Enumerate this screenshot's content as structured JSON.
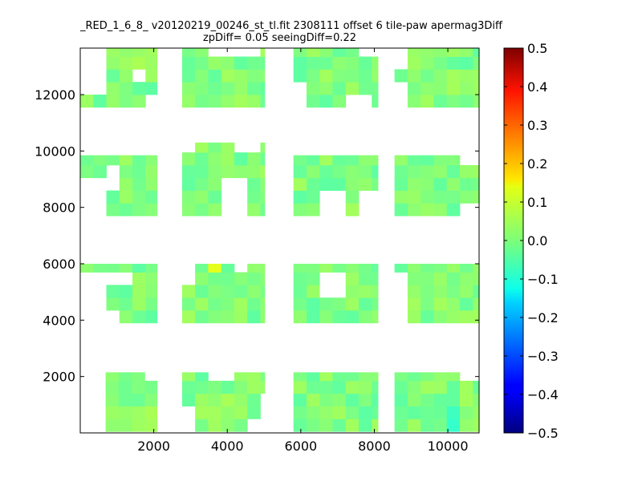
{
  "chart_data": {
    "type": "heatmap",
    "title_line1": "_RED_1_6_8_ v20120219_00246_st_tl.fit 2308111 offset 6 tile-paw apermag3Diff",
    "title_line2": "zpDiff= 0.05 seeingDiff=0.22",
    "xlim": [
      0,
      10850
    ],
    "ylim": [
      0,
      13650
    ],
    "xticks": [
      2000,
      4000,
      6000,
      8000,
      10000
    ],
    "yticks": [
      2000,
      4000,
      6000,
      8000,
      10000,
      12000
    ],
    "colorbar": {
      "colormap": "jet",
      "range": [
        -0.5,
        0.5
      ],
      "ticks": [
        -0.5,
        -0.4,
        -0.3,
        -0.2,
        -0.1,
        0.0,
        0.1,
        0.2,
        0.3,
        0.4,
        0.5
      ],
      "tick_labels": [
        "−0.5",
        "−0.4",
        "−0.3",
        "−0.2",
        "−0.1",
        "0.0",
        "0.1",
        "0.2",
        "0.3",
        "0.4",
        "0.5"
      ]
    },
    "grid": false,
    "cell_size": [
      355,
      450
    ],
    "base_value": 0.0,
    "blocks": [
      {
        "x": [
          690,
          2090
        ],
        "y": [
          50,
          2150
        ]
      },
      {
        "x": [
          2770,
          5020
        ],
        "y": [
          50,
          2150
        ]
      },
      {
        "x": [
          5800,
          8100
        ],
        "y": [
          50,
          2150
        ]
      },
      {
        "x": [
          8550,
          10850
        ],
        "y": [
          50,
          2150
        ]
      },
      {
        "x": [
          0,
          2090
        ],
        "y": [
          3900,
          6000
        ]
      },
      {
        "x": [
          2770,
          5020
        ],
        "y": [
          3900,
          6000
        ]
      },
      {
        "x": [
          5800,
          8100
        ],
        "y": [
          3900,
          6000
        ]
      },
      {
        "x": [
          8550,
          10850
        ],
        "y": [
          3900,
          6000
        ]
      },
      {
        "x": [
          0,
          2090
        ],
        "y": [
          7700,
          9850
        ]
      },
      {
        "x": [
          2770,
          5020
        ],
        "y": [
          7700,
          10300
        ]
      },
      {
        "x": [
          5800,
          8100
        ],
        "y": [
          7700,
          9850
        ]
      },
      {
        "x": [
          8550,
          10850
        ],
        "y": [
          7700,
          9850
        ]
      },
      {
        "x": [
          0,
          2090
        ],
        "y": [
          11550,
          13650
        ]
      },
      {
        "x": [
          2770,
          5020
        ],
        "y": [
          11550,
          13650
        ]
      },
      {
        "x": [
          5800,
          8100
        ],
        "y": [
          11550,
          13650
        ]
      },
      {
        "x": [
          8550,
          10850
        ],
        "y": [
          11550,
          13650
        ]
      }
    ],
    "holes": [
      {
        "x": [
          0,
          690
        ],
        "y": [
          50,
          1700
        ]
      },
      {
        "x": [
          0,
          690
        ],
        "y": [
          1700,
          2150
        ],
        "keep_left": 355
      },
      {
        "x": [
          1740,
          2090
        ],
        "y": [
          1700,
          2150
        ]
      },
      {
        "x": [
          2770,
          3120
        ],
        "y": [
          50,
          900
        ]
      },
      {
        "x": [
          3470,
          4170
        ],
        "y": [
          1700,
          2150
        ]
      },
      {
        "x": [
          4520,
          5020
        ],
        "y": [
          50,
          450
        ]
      },
      {
        "x": [
          4870,
          5020
        ],
        "y": [
          450,
          1300
        ]
      },
      {
        "x": [
          8100,
          8550
        ],
        "y": [
          50,
          450
        ]
      },
      {
        "x": [
          10500,
          10850
        ],
        "y": [
          1700,
          2150
        ]
      },
      {
        "x": [
          1050,
          1400
        ],
        "y": [
          5150,
          5600
        ]
      },
      {
        "x": [
          0,
          1050
        ],
        "y": [
          5150,
          5600
        ]
      },
      {
        "x": [
          0,
          690
        ],
        "y": [
          4800,
          5150
        ]
      },
      {
        "x": [
          0,
          1050
        ],
        "y": [
          3900,
          4350
        ]
      },
      {
        "x": [
          0,
          690
        ],
        "y": [
          4350,
          4800
        ]
      },
      {
        "x": [
          2770,
          3120
        ],
        "y": [
          5150,
          6000
        ]
      },
      {
        "x": [
          3120,
          3120
        ],
        "y": [
          5600,
          6000
        ]
      },
      {
        "x": [
          4170,
          4520
        ],
        "y": [
          5600,
          6000
        ]
      },
      {
        "x": [
          6500,
          7200
        ],
        "y": [
          4800,
          5600
        ]
      },
      {
        "x": [
          8550,
          8900
        ],
        "y": [
          3900,
          5600
        ]
      },
      {
        "x": [
          0,
          690
        ],
        "y": [
          7700,
          9050
        ]
      },
      {
        "x": [
          690,
          1050
        ],
        "y": [
          8600,
          9400
        ]
      },
      {
        "x": [
          2090,
          2090
        ],
        "y": [
          7700,
          9850
        ]
      },
      {
        "x": [
          3820,
          4520
        ],
        "y": [
          7700,
          8950
        ]
      },
      {
        "x": [
          2770,
          3120
        ],
        "y": [
          9850,
          10300
        ]
      },
      {
        "x": [
          4170,
          4870
        ],
        "y": [
          9850,
          10300
        ]
      },
      {
        "x": [
          6500,
          7200
        ],
        "y": [
          7700,
          8600
        ]
      },
      {
        "x": [
          7550,
          8100
        ],
        "y": [
          7700,
          8600
        ]
      },
      {
        "x": [
          10500,
          10850
        ],
        "y": [
          9400,
          9850
        ]
      },
      {
        "x": [
          10500,
          10850
        ],
        "y": [
          7700,
          8150
        ]
      },
      {
        "x": [
          0,
          690
        ],
        "y": [
          12000,
          13650
        ]
      },
      {
        "x": [
          1740,
          2090
        ],
        "y": [
          11550,
          12000
        ]
      },
      {
        "x": [
          1400,
          1740
        ],
        "y": [
          13200,
          13650
        ],
        "skip": true
      },
      {
        "x": [
          1400,
          1740
        ],
        "y": [
          12450,
          12900
        ]
      },
      {
        "x": [
          3470,
          4870
        ],
        "y": [
          13300,
          13650
        ]
      },
      {
        "x": [
          5800,
          6150
        ],
        "y": [
          11550,
          12450
        ]
      },
      {
        "x": [
          7200,
          7900
        ],
        "y": [
          11550,
          11900
        ]
      },
      {
        "x": [
          7550,
          8100
        ],
        "y": [
          13200,
          13650
        ]
      },
      {
        "x": [
          8550,
          8900
        ],
        "y": [
          11550,
          12450
        ]
      },
      {
        "x": [
          8550,
          8900
        ],
        "y": [
          12900,
          13650
        ]
      }
    ],
    "hotspots": [
      {
        "x": [
          3470,
          3820
        ],
        "y": [
          5600,
          6000
        ],
        "value": 0.09
      },
      {
        "x": [
          1050,
          2090
        ],
        "y": [
          12450,
          13650
        ],
        "value": 0.03
      },
      {
        "x": [
          690,
          2090
        ],
        "y": [
          50,
          900
        ],
        "value": 0.03
      },
      {
        "x": [
          9950,
          10500
        ],
        "y": [
          50,
          900
        ],
        "value": -0.06
      },
      {
        "x": [
          3120,
          4520
        ],
        "y": [
          450,
          1300
        ],
        "value": 0.03
      },
      {
        "x": [
          9950,
          10850
        ],
        "y": [
          12000,
          12900
        ],
        "value": 0.03
      }
    ]
  }
}
